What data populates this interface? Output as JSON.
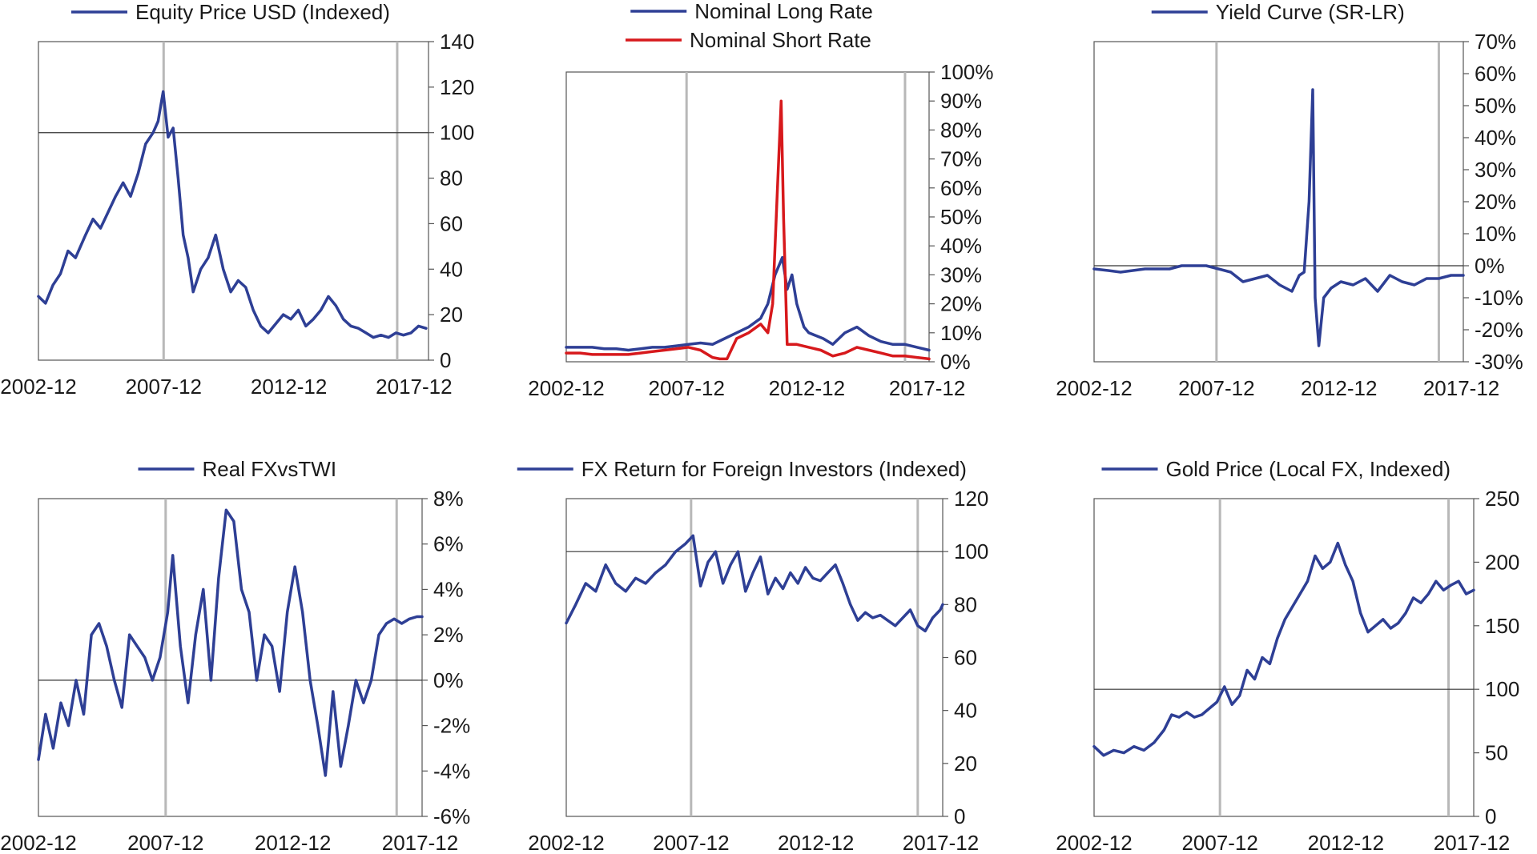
{
  "charts": [
    {
      "chart_data": {
        "type": "line",
        "legend": [
          "Equity Price USD (Indexed)"
        ],
        "x_tick_labels": [
          "2002-12",
          "2007-12",
          "2012-12",
          "2017-12"
        ],
        "x_range": [
          2002.92,
          2018.5
        ],
        "ylim": [
          0,
          140
        ],
        "y_ticks": [
          0,
          20,
          40,
          60,
          80,
          100,
          120,
          140
        ],
        "y_tick_labels": [
          "0",
          "20",
          "40",
          "60",
          "80",
          "100",
          "120",
          "140"
        ],
        "reference_line": 100,
        "vertical_markers": [
          2007.92,
          2017.25
        ],
        "series": [
          {
            "name": "Equity Price USD (Indexed)",
            "color": "#2e3f95",
            "x": [
              2002.92,
              2003.2,
              2003.5,
              2003.8,
              2004.1,
              2004.4,
              2004.8,
              2005.1,
              2005.4,
              2005.7,
              2006.0,
              2006.3,
              2006.6,
              2006.9,
              2007.2,
              2007.5,
              2007.7,
              2007.9,
              2008.1,
              2008.3,
              2008.5,
              2008.7,
              2008.9,
              2009.1,
              2009.4,
              2009.7,
              2010.0,
              2010.3,
              2010.6,
              2010.9,
              2011.2,
              2011.5,
              2011.8,
              2012.1,
              2012.4,
              2012.7,
              2013.0,
              2013.3,
              2013.6,
              2013.9,
              2014.2,
              2014.5,
              2014.8,
              2015.1,
              2015.4,
              2015.7,
              2016.0,
              2016.3,
              2016.6,
              2016.9,
              2017.2,
              2017.5,
              2017.8,
              2018.1,
              2018.4
            ],
            "values": [
              28,
              25,
              33,
              38,
              48,
              45,
              55,
              62,
              58,
              65,
              72,
              78,
              72,
              82,
              95,
              100,
              105,
              118,
              98,
              102,
              80,
              55,
              45,
              30,
              40,
              45,
              55,
              40,
              30,
              35,
              32,
              22,
              15,
              12,
              16,
              20,
              18,
              22,
              15,
              18,
              22,
              28,
              24,
              18,
              15,
              14,
              12,
              10,
              11,
              10,
              12,
              11,
              12,
              15,
              14
            ]
          }
        ]
      }
    },
    {
      "chart_data": {
        "type": "line",
        "legend": [
          "Nominal Long Rate",
          "Nominal Short Rate"
        ],
        "x_tick_labels": [
          "2002-12",
          "2007-12",
          "2012-12",
          "2017-12"
        ],
        "x_range": [
          2002.92,
          2018.0
        ],
        "ylim": [
          0,
          1
        ],
        "y_ticks": [
          0,
          0.1,
          0.2,
          0.3,
          0.4,
          0.5,
          0.6,
          0.7,
          0.8,
          0.9,
          1.0
        ],
        "y_tick_labels": [
          "0%",
          "10%",
          "20%",
          "30%",
          "40%",
          "50%",
          "60%",
          "70%",
          "80%",
          "90%",
          "100%"
        ],
        "vertical_markers": [
          2007.92,
          2017.0
        ],
        "series": [
          {
            "name": "Nominal Long Rate",
            "color": "#2e3f95",
            "x": [
              2002.92,
              2003.5,
              2004.0,
              2004.5,
              2005.0,
              2005.5,
              2006.0,
              2006.5,
              2007.0,
              2007.5,
              2008.0,
              2008.5,
              2009.0,
              2009.5,
              2010.0,
              2010.5,
              2011.0,
              2011.3,
              2011.6,
              2011.9,
              2012.1,
              2012.3,
              2012.5,
              2012.8,
              2013.0,
              2013.3,
              2013.6,
              2014.0,
              2014.5,
              2015.0,
              2015.5,
              2016.0,
              2016.5,
              2017.0,
              2017.5,
              2018.0
            ],
            "values": [
              0.05,
              0.05,
              0.05,
              0.045,
              0.045,
              0.04,
              0.045,
              0.05,
              0.05,
              0.055,
              0.06,
              0.065,
              0.06,
              0.08,
              0.1,
              0.12,
              0.15,
              0.2,
              0.3,
              0.36,
              0.25,
              0.3,
              0.2,
              0.12,
              0.1,
              0.09,
              0.08,
              0.06,
              0.1,
              0.12,
              0.09,
              0.07,
              0.06,
              0.06,
              0.05,
              0.04
            ]
          },
          {
            "name": "Nominal Short Rate",
            "color": "#d7191c",
            "x": [
              2002.92,
              2003.5,
              2004.0,
              2004.5,
              2005.0,
              2005.5,
              2006.0,
              2006.5,
              2007.0,
              2007.5,
              2008.0,
              2008.5,
              2009.0,
              2009.3,
              2009.6,
              2010.0,
              2010.5,
              2011.0,
              2011.3,
              2011.5,
              2011.7,
              2011.85,
              2011.95,
              2012.1,
              2012.5,
              2013.0,
              2013.5,
              2014.0,
              2014.5,
              2015.0,
              2015.5,
              2016.0,
              2016.5,
              2017.0,
              2017.5,
              2018.0
            ],
            "values": [
              0.03,
              0.03,
              0.025,
              0.025,
              0.025,
              0.025,
              0.03,
              0.035,
              0.04,
              0.045,
              0.05,
              0.04,
              0.015,
              0.01,
              0.01,
              0.08,
              0.1,
              0.13,
              0.1,
              0.2,
              0.6,
              0.9,
              0.5,
              0.06,
              0.06,
              0.05,
              0.04,
              0.02,
              0.03,
              0.05,
              0.04,
              0.03,
              0.02,
              0.02,
              0.015,
              0.01
            ]
          }
        ]
      }
    },
    {
      "chart_data": {
        "type": "line",
        "legend": [
          "Yield Curve (SR-LR)"
        ],
        "x_tick_labels": [
          "2002-12",
          "2007-12",
          "2012-12",
          "2017-12"
        ],
        "x_range": [
          2002.92,
          2018.0
        ],
        "ylim": [
          -0.3,
          0.7
        ],
        "y_ticks": [
          -0.3,
          -0.2,
          -0.1,
          0,
          0.1,
          0.2,
          0.3,
          0.4,
          0.5,
          0.6,
          0.7
        ],
        "y_tick_labels": [
          "-30%",
          "-20%",
          "-10%",
          "0%",
          "10%",
          "20%",
          "30%",
          "40%",
          "50%",
          "60%",
          "70%"
        ],
        "reference_line": 0,
        "vertical_markers": [
          2007.92,
          2017.0
        ],
        "series": [
          {
            "name": "Yield Curve (SR-LR)",
            "color": "#2e3f95",
            "x": [
              2002.92,
              2003.5,
              2004.0,
              2004.5,
              2005.0,
              2005.5,
              2006.0,
              2006.5,
              2007.0,
              2007.5,
              2008.0,
              2008.5,
              2009.0,
              2009.5,
              2010.0,
              2010.5,
              2011.0,
              2011.3,
              2011.5,
              2011.7,
              2011.85,
              2011.95,
              2012.1,
              2012.3,
              2012.6,
              2013.0,
              2013.5,
              2014.0,
              2014.5,
              2015.0,
              2015.5,
              2016.0,
              2016.5,
              2017.0,
              2017.5,
              2018.0
            ],
            "values": [
              -0.01,
              -0.015,
              -0.02,
              -0.015,
              -0.01,
              -0.01,
              -0.01,
              0,
              0,
              0,
              -0.01,
              -0.02,
              -0.05,
              -0.04,
              -0.03,
              -0.06,
              -0.08,
              -0.03,
              -0.02,
              0.2,
              0.55,
              -0.1,
              -0.25,
              -0.1,
              -0.07,
              -0.05,
              -0.06,
              -0.04,
              -0.08,
              -0.03,
              -0.05,
              -0.06,
              -0.04,
              -0.04,
              -0.03,
              -0.03
            ]
          }
        ]
      }
    },
    {
      "chart_data": {
        "type": "line",
        "legend": [
          "Real FXvsTWI"
        ],
        "x_tick_labels": [
          "2002-12",
          "2007-12",
          "2012-12",
          "2017-12"
        ],
        "x_range": [
          2002.92,
          2018.0
        ],
        "ylim": [
          -0.06,
          0.08
        ],
        "y_ticks": [
          -0.06,
          -0.04,
          -0.02,
          0,
          0.02,
          0.04,
          0.06,
          0.08
        ],
        "y_tick_labels": [
          "-6%",
          "-4%",
          "-2%",
          "0%",
          "2%",
          "4%",
          "6%",
          "8%"
        ],
        "reference_line": 0,
        "vertical_markers": [
          2007.92,
          2017.0
        ],
        "series": [
          {
            "name": "Real FXvsTWI",
            "color": "#2e3f95",
            "x": [
              2002.92,
              2003.2,
              2003.5,
              2003.8,
              2004.1,
              2004.4,
              2004.7,
              2005.0,
              2005.3,
              2005.6,
              2005.9,
              2006.2,
              2006.5,
              2006.8,
              2007.1,
              2007.4,
              2007.7,
              2008.0,
              2008.2,
              2008.5,
              2008.8,
              2009.1,
              2009.4,
              2009.7,
              2010.0,
              2010.3,
              2010.6,
              2010.9,
              2011.2,
              2011.5,
              2011.8,
              2012.1,
              2012.4,
              2012.7,
              2013.0,
              2013.3,
              2013.6,
              2013.9,
              2014.2,
              2014.5,
              2014.8,
              2015.1,
              2015.4,
              2015.7,
              2016.0,
              2016.3,
              2016.6,
              2016.9,
              2017.2,
              2017.5,
              2017.8,
              2018.0
            ],
            "values": [
              -0.035,
              -0.015,
              -0.03,
              -0.01,
              -0.02,
              0.0,
              -0.015,
              0.02,
              0.025,
              0.015,
              0.0,
              -0.012,
              0.02,
              0.015,
              0.01,
              0.0,
              0.01,
              0.03,
              0.055,
              0.015,
              -0.01,
              0.02,
              0.04,
              0.0,
              0.045,
              0.075,
              0.07,
              0.04,
              0.03,
              0.0,
              0.02,
              0.015,
              -0.005,
              0.03,
              0.05,
              0.03,
              0.0,
              -0.02,
              -0.042,
              -0.005,
              -0.038,
              -0.02,
              0.0,
              -0.01,
              0.0,
              0.02,
              0.025,
              0.027,
              0.025,
              0.027,
              0.028,
              0.028
            ]
          }
        ]
      }
    },
    {
      "chart_data": {
        "type": "line",
        "legend": [
          "FX Return for Foreign Investors (Indexed)"
        ],
        "x_tick_labels": [
          "2002-12",
          "2007-12",
          "2012-12",
          "2017-12"
        ],
        "x_range": [
          2002.92,
          2018.0
        ],
        "ylim": [
          0,
          120
        ],
        "y_ticks": [
          0,
          20,
          40,
          60,
          80,
          100,
          120
        ],
        "y_tick_labels": [
          "0",
          "20",
          "40",
          "60",
          "80",
          "100",
          "120"
        ],
        "reference_line": 100,
        "vertical_markers": [
          2007.92,
          2017.0
        ],
        "series": [
          {
            "name": "FX Return for Foreign Investors (Indexed)",
            "color": "#2e3f95",
            "x": [
              2002.92,
              2003.3,
              2003.7,
              2004.1,
              2004.5,
              2004.9,
              2005.3,
              2005.7,
              2006.1,
              2006.5,
              2006.9,
              2007.3,
              2007.7,
              2008.0,
              2008.3,
              2008.6,
              2008.9,
              2009.2,
              2009.5,
              2009.8,
              2010.1,
              2010.4,
              2010.7,
              2011.0,
              2011.3,
              2011.6,
              2011.9,
              2012.2,
              2012.5,
              2012.8,
              2013.1,
              2013.4,
              2013.7,
              2014.0,
              2014.3,
              2014.6,
              2014.9,
              2015.2,
              2015.5,
              2015.8,
              2016.1,
              2016.4,
              2016.7,
              2017.0,
              2017.3,
              2017.6,
              2017.9,
              2018.0
            ],
            "values": [
              73,
              80,
              88,
              85,
              95,
              88,
              85,
              90,
              88,
              92,
              95,
              100,
              103,
              106,
              87,
              96,
              100,
              88,
              95,
              100,
              85,
              92,
              98,
              84,
              90,
              86,
              92,
              88,
              94,
              90,
              89,
              92,
              95,
              88,
              80,
              74,
              77,
              75,
              76,
              74,
              72,
              75,
              78,
              72,
              70,
              75,
              78,
              80
            ]
          }
        ]
      }
    },
    {
      "chart_data": {
        "type": "line",
        "legend": [
          "Gold Price (Local FX, Indexed)"
        ],
        "x_tick_labels": [
          "2002-12",
          "2007-12",
          "2012-12",
          "2017-12"
        ],
        "x_range": [
          2002.92,
          2018.0
        ],
        "ylim": [
          0,
          250
        ],
        "y_ticks": [
          0,
          50,
          100,
          150,
          200,
          250
        ],
        "y_tick_labels": [
          "0",
          "50",
          "100",
          "150",
          "200",
          "250"
        ],
        "reference_line": 100,
        "vertical_markers": [
          2007.92,
          2017.0
        ],
        "series": [
          {
            "name": "Gold Price (Local FX, Indexed)",
            "color": "#2e3f95",
            "x": [
              2002.92,
              2003.3,
              2003.7,
              2004.1,
              2004.5,
              2004.9,
              2005.3,
              2005.7,
              2006.0,
              2006.3,
              2006.6,
              2006.9,
              2007.2,
              2007.5,
              2007.8,
              2008.1,
              2008.4,
              2008.7,
              2009.0,
              2009.3,
              2009.6,
              2009.9,
              2010.2,
              2010.5,
              2010.8,
              2011.1,
              2011.4,
              2011.7,
              2012.0,
              2012.3,
              2012.6,
              2012.9,
              2013.2,
              2013.5,
              2013.8,
              2014.1,
              2014.4,
              2014.7,
              2015.0,
              2015.3,
              2015.6,
              2015.9,
              2016.2,
              2016.5,
              2016.8,
              2017.1,
              2017.4,
              2017.7,
              2018.0
            ],
            "values": [
              55,
              48,
              52,
              50,
              55,
              52,
              58,
              68,
              80,
              78,
              82,
              78,
              80,
              85,
              90,
              102,
              88,
              95,
              115,
              108,
              125,
              120,
              140,
              155,
              165,
              175,
              185,
              205,
              195,
              200,
              215,
              198,
              185,
              160,
              145,
              150,
              155,
              148,
              152,
              160,
              172,
              168,
              175,
              185,
              178,
              182,
              185,
              175,
              178
            ]
          }
        ]
      }
    }
  ]
}
